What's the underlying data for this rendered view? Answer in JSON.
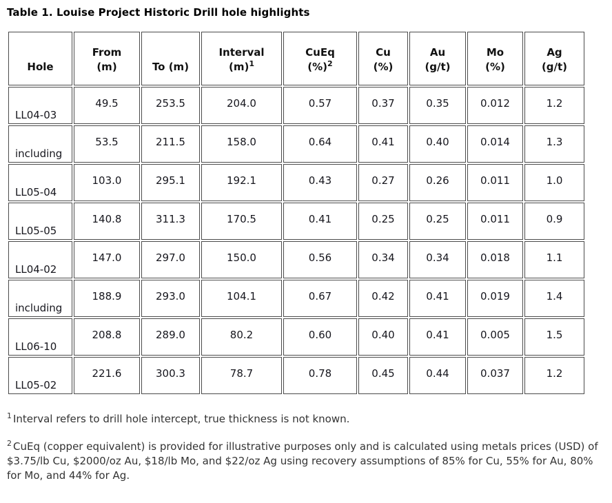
{
  "title": "Table 1. Louise Project Historic Drill hole highlights",
  "table": {
    "columns": [
      {
        "id": "hole",
        "line1": "Hole",
        "line2": "",
        "sup": ""
      },
      {
        "id": "from",
        "line1": "From",
        "line2": "(m)",
        "sup": ""
      },
      {
        "id": "to",
        "line1": "To (m)",
        "line2": "",
        "sup": ""
      },
      {
        "id": "interval",
        "line1": "Interval",
        "line2": "(m)",
        "sup": "1"
      },
      {
        "id": "cueq",
        "line1": "CuEq",
        "line2": "(%)",
        "sup": "2"
      },
      {
        "id": "cu",
        "line1": "Cu",
        "line2": "(%)",
        "sup": ""
      },
      {
        "id": "au",
        "line1": "Au",
        "line2": "(g/t)",
        "sup": ""
      },
      {
        "id": "mo",
        "line1": "Mo",
        "line2": "(%)",
        "sup": ""
      },
      {
        "id": "ag",
        "line1": "Ag",
        "line2": "(g/t)",
        "sup": ""
      }
    ],
    "rows": [
      {
        "hole": "LL04-03",
        "values": [
          "49.5",
          "253.5",
          "204.0",
          "0.57",
          "0.37",
          "0.35",
          "0.012",
          "1.2"
        ]
      },
      {
        "hole": "including",
        "values": [
          "53.5",
          "211.5",
          "158.0",
          "0.64",
          "0.41",
          "0.40",
          "0.014",
          "1.3"
        ]
      },
      {
        "hole": "LL05-04",
        "values": [
          "103.0",
          "295.1",
          "192.1",
          "0.43",
          "0.27",
          "0.26",
          "0.011",
          "1.0"
        ]
      },
      {
        "hole": "LL05-05",
        "values": [
          "140.8",
          "311.3",
          "170.5",
          "0.41",
          "0.25",
          "0.25",
          "0.011",
          "0.9"
        ]
      },
      {
        "hole": "LL04-02",
        "values": [
          "147.0",
          "297.0",
          "150.0",
          "0.56",
          "0.34",
          "0.34",
          "0.018",
          "1.1"
        ]
      },
      {
        "hole": "including",
        "values": [
          "188.9",
          "293.0",
          "104.1",
          "0.67",
          "0.42",
          "0.41",
          "0.019",
          "1.4"
        ]
      },
      {
        "hole": "LL06-10",
        "values": [
          "208.8",
          "289.0",
          "80.2",
          "0.60",
          "0.40",
          "0.41",
          "0.005",
          "1.5"
        ]
      },
      {
        "hole": "LL05-02",
        "values": [
          "221.6",
          "300.3",
          "78.7",
          "0.78",
          "0.45",
          "0.44",
          "0.037",
          "1.2"
        ]
      }
    ]
  },
  "footnotes": [
    {
      "marker": "1",
      "text": "Interval refers to drill hole intercept, true thickness is not known."
    },
    {
      "marker": "2",
      "text": "CuEq (copper equivalent) is provided for illustrative purposes only and is calculated using metals prices (USD) of $3.75/lb Cu, $2000/oz Au, $18/lb Mo, and $22/oz Ag using recovery assumptions of 85% for Cu, 55% for Au, 80% for Mo, and 44% for Ag."
    }
  ],
  "colors": {
    "text": "#1a1a1a",
    "border": "#4a4a4a",
    "background": "#ffffff"
  }
}
